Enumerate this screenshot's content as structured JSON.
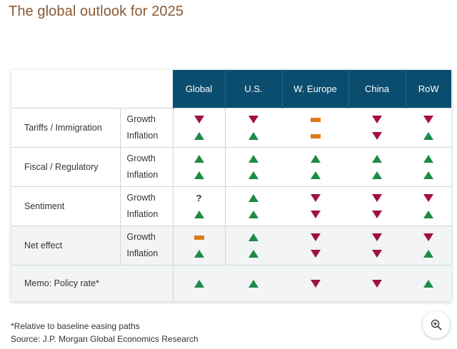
{
  "title": "The global outlook for 2025",
  "columns": [
    "Global",
    "U.S.",
    "W. Europe",
    "China",
    "RoW"
  ],
  "rows": [
    {
      "label": "Tariffs / Immigration",
      "shaded": false,
      "sub": [
        {
          "label": "Growth",
          "values": [
            "down",
            "down",
            "flat",
            "down",
            "down"
          ]
        },
        {
          "label": "Inflation",
          "values": [
            "up",
            "up",
            "flat",
            "down",
            "up"
          ]
        }
      ]
    },
    {
      "label": "Fiscal / Regulatory",
      "shaded": false,
      "sub": [
        {
          "label": "Growth",
          "values": [
            "up",
            "up",
            "up",
            "up",
            "up"
          ]
        },
        {
          "label": "Inflation",
          "values": [
            "up",
            "up",
            "up",
            "up",
            "up"
          ]
        }
      ]
    },
    {
      "label": "Sentiment",
      "shaded": false,
      "sub": [
        {
          "label": "Growth",
          "values": [
            "?",
            "up",
            "down",
            "down",
            "down"
          ]
        },
        {
          "label": "Inflation",
          "values": [
            "up",
            "up",
            "down",
            "down",
            "up"
          ]
        }
      ]
    },
    {
      "label": "Net effect",
      "shaded": true,
      "sub": [
        {
          "label": "Growth",
          "values": [
            "flat",
            "up",
            "down",
            "down",
            "down"
          ]
        },
        {
          "label": "Inflation",
          "values": [
            "up",
            "up",
            "down",
            "down",
            "up"
          ]
        }
      ]
    }
  ],
  "memo": {
    "label": "Memo: Policy rate*",
    "values": [
      "up",
      "up",
      "down",
      "down",
      "up"
    ]
  },
  "footnotes": {
    "note": "*Relative to baseline easing paths",
    "source": "Source: J.P. Morgan Global Economics Research"
  },
  "colors": {
    "header": "#0b4d6e",
    "up": "#1d8a48",
    "down": "#a0113b",
    "flat": "#e17818",
    "title": "#8a5a33"
  },
  "zoom_button": {
    "icon": "zoom-in-icon"
  }
}
